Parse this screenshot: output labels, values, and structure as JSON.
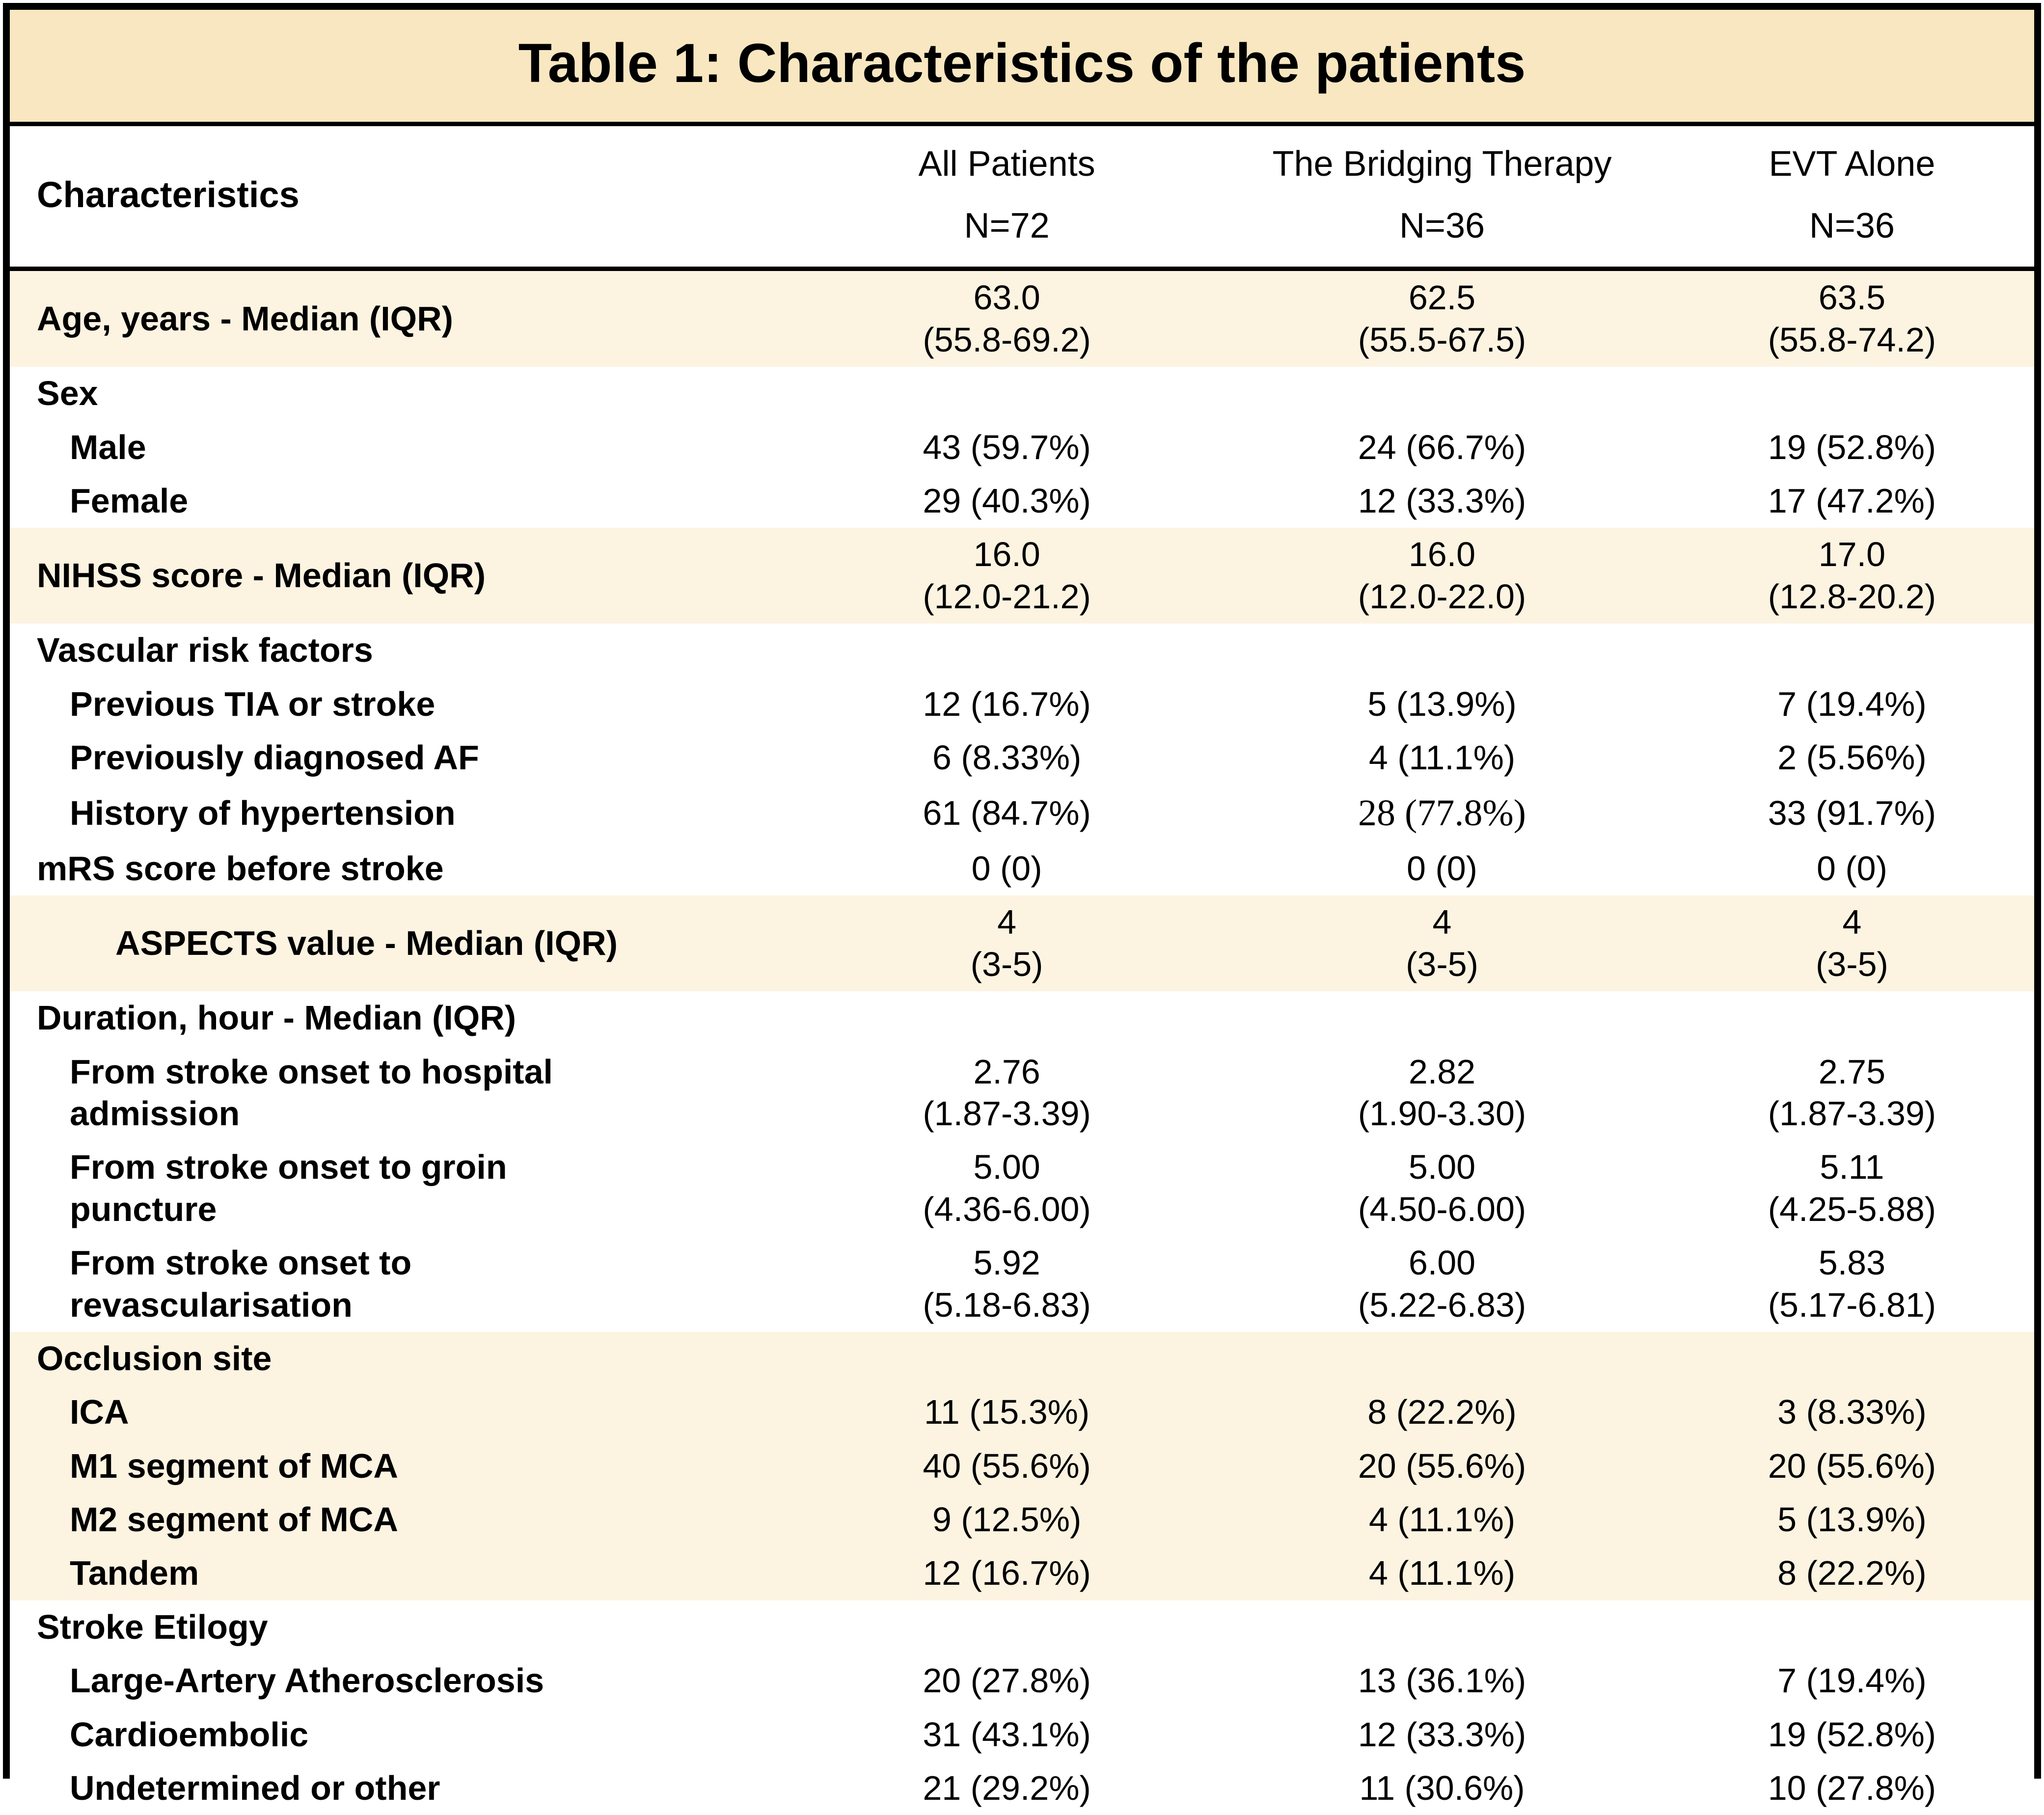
{
  "title": "Table 1: Characteristics of the patients",
  "colors": {
    "title_band": "#F8E7C0",
    "row_band": "#FCF3E1",
    "row_white": "#FFFFFF",
    "border": "#000000",
    "text": "#000000"
  },
  "header": {
    "label": "Characteristics",
    "columns": [
      "All Patients\nN=72",
      "The Bridging Therapy\nN=36",
      "EVT Alone\nN=36"
    ]
  },
  "chart_data": {
    "type": "table",
    "title": "Table 1: Characteristics of the patients",
    "columns": [
      "Characteristics",
      "All Patients N=72",
      "The Bridging Therapy N=36",
      "EVT Alone N=36"
    ],
    "rows": [
      {
        "label": "Age, years - Median (IQR)",
        "indent": 0,
        "band": "cream",
        "values": [
          "63.0\n(55.8-69.2)",
          "62.5\n(55.5-67.5)",
          "63.5\n(55.8-74.2)"
        ]
      },
      {
        "label": "Sex",
        "indent": 0,
        "band": "white",
        "values": [
          "",
          "",
          ""
        ]
      },
      {
        "label": "Male",
        "indent": 1,
        "band": "white",
        "values": [
          "43 (59.7%)",
          "24 (66.7%)",
          "19 (52.8%)"
        ]
      },
      {
        "label": "Female",
        "indent": 1,
        "band": "white",
        "values": [
          "29 (40.3%)",
          "12 (33.3%)",
          "17 (47.2%)"
        ]
      },
      {
        "label": "NIHSS score - Median (IQR)",
        "indent": 0,
        "band": "cream",
        "values": [
          "16.0\n(12.0-21.2)",
          "16.0\n(12.0-22.0)",
          "17.0\n(12.8-20.2)"
        ]
      },
      {
        "label": "Vascular risk factors",
        "indent": 0,
        "band": "white",
        "values": [
          "",
          "",
          ""
        ]
      },
      {
        "label": "Previous TIA or stroke",
        "indent": 1,
        "band": "white",
        "values": [
          "12 (16.7%)",
          "5 (13.9%)",
          "7 (19.4%)"
        ]
      },
      {
        "label": "Previously diagnosed AF",
        "indent": 1,
        "band": "white",
        "values": [
          "6 (8.33%)",
          "4 (11.1%)",
          "2 (5.56%)"
        ]
      },
      {
        "label": "History of hypertension",
        "indent": 1,
        "band": "white",
        "values": [
          "61 (84.7%)",
          "28 (77.8%)",
          "33 (91.7%)"
        ],
        "serif_cells": [
          1
        ]
      },
      {
        "label": "mRS score before stroke",
        "indent": 0,
        "band": "white",
        "values": [
          "0 (0)",
          "0 (0)",
          "0 (0)"
        ]
      },
      {
        "label": "ASPECTS value - Median (IQR)",
        "indent": 2,
        "band": "cream",
        "values": [
          "4\n(3-5)",
          "4\n(3-5)",
          "4\n(3-5)"
        ]
      },
      {
        "label": "Duration, hour - Median (IQR)",
        "indent": 0,
        "band": "white",
        "values": [
          "",
          "",
          ""
        ]
      },
      {
        "label": "From stroke onset to hospital\nadmission",
        "indent": 1,
        "band": "white",
        "values": [
          "2.76\n(1.87-3.39)",
          "2.82\n(1.90-3.30)",
          "2.75\n(1.87-3.39)"
        ]
      },
      {
        "label": "From stroke onset to groin\npuncture",
        "indent": 1,
        "band": "white",
        "values": [
          "5.00\n(4.36-6.00)",
          "5.00\n(4.50-6.00)",
          "5.11\n(4.25-5.88)"
        ]
      },
      {
        "label": "From stroke onset to\nrevascularisation",
        "indent": 1,
        "band": "white",
        "values": [
          "5.92\n(5.18-6.83)",
          "6.00\n(5.22-6.83)",
          "5.83\n(5.17-6.81)"
        ]
      },
      {
        "label": "Occlusion site",
        "indent": 0,
        "band": "cream",
        "values": [
          "",
          "",
          ""
        ]
      },
      {
        "label": "ICA",
        "indent": 1,
        "band": "cream",
        "values": [
          "11 (15.3%)",
          "8 (22.2%)",
          "3 (8.33%)"
        ]
      },
      {
        "label": "M1 segment of MCA",
        "indent": 1,
        "band": "cream",
        "values": [
          "40 (55.6%)",
          "20 (55.6%)",
          "20 (55.6%)"
        ]
      },
      {
        "label": "M2 segment of MCA",
        "indent": 1,
        "band": "cream",
        "values": [
          "9 (12.5%)",
          "4 (11.1%)",
          "5 (13.9%)"
        ]
      },
      {
        "label": "Tandem",
        "indent": 1,
        "band": "cream",
        "values": [
          "12 (16.7%)",
          "4 (11.1%)",
          "8 (22.2%)"
        ]
      },
      {
        "label": "Stroke Etilogy",
        "indent": 0,
        "band": "white",
        "values": [
          "",
          "",
          ""
        ]
      },
      {
        "label": "Large-Artery Atherosclerosis",
        "indent": 1,
        "band": "white",
        "values": [
          "20 (27.8%)",
          "13 (36.1%)",
          "7 (19.4%)"
        ]
      },
      {
        "label": "Cardioembolic",
        "indent": 1,
        "band": "white",
        "values": [
          "31 (43.1%)",
          "12 (33.3%)",
          "19 (52.8%)"
        ]
      },
      {
        "label": "Undetermined or other",
        "indent": 1,
        "band": "white",
        "values": [
          "21 (29.2%)",
          "11 (30.6%)",
          "10 (27.8%)"
        ]
      }
    ]
  }
}
